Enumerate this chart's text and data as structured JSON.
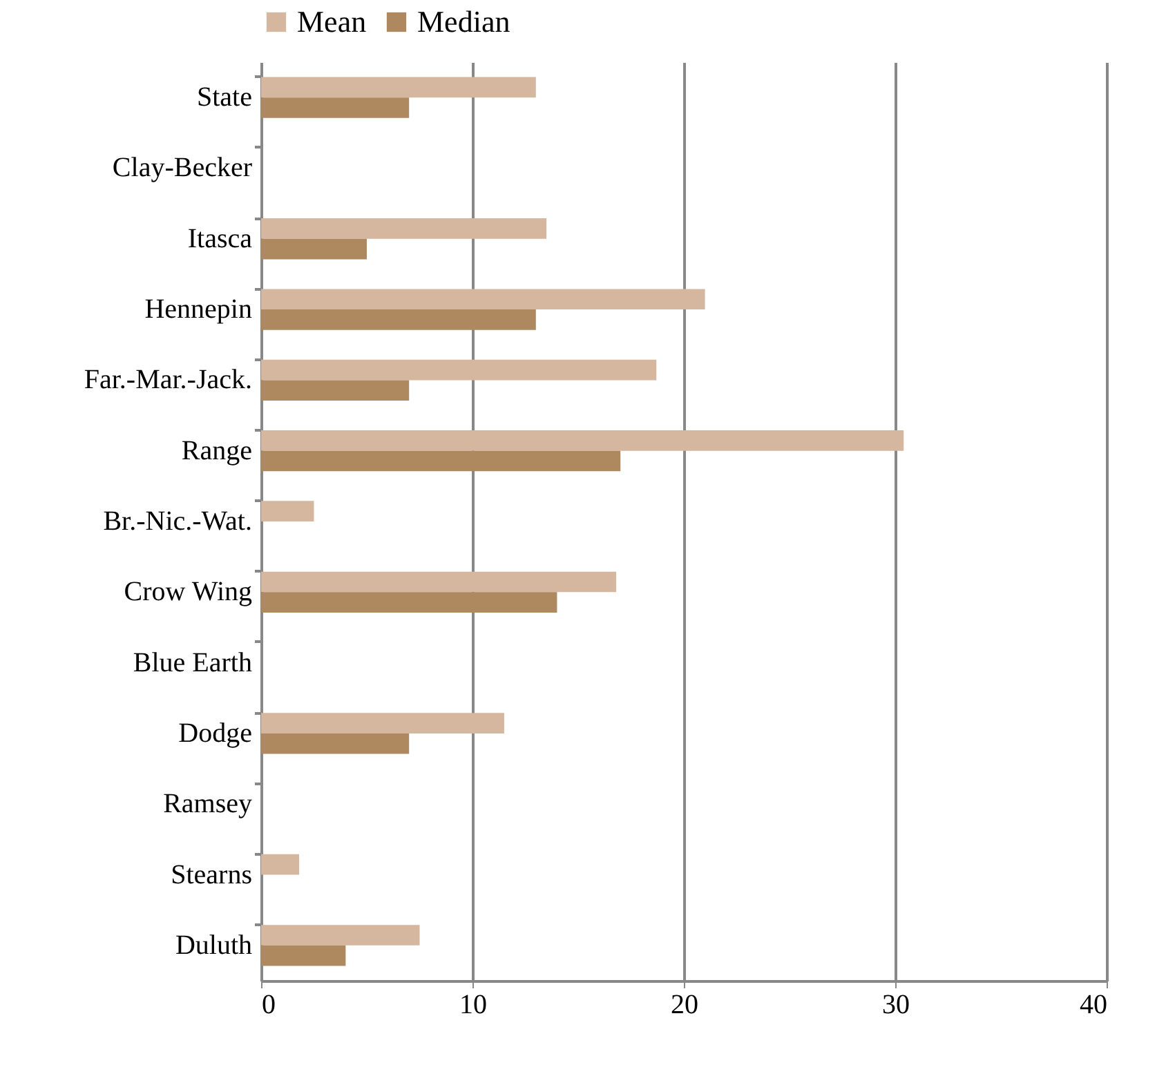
{
  "chart_data": {
    "type": "bar",
    "orientation": "horizontal",
    "categories": [
      "State",
      "Clay-Becker",
      "Itasca",
      "Hennepin",
      "Far.-Mar.-Jack.",
      "Range",
      "Br.-Nic.-Wat.",
      "Crow Wing",
      "Blue Earth",
      "Dodge",
      "Ramsey",
      "Stearns",
      "Duluth"
    ],
    "series": [
      {
        "name": "Mean",
        "color": "#d4b79e",
        "values": [
          13,
          null,
          13.5,
          21,
          18.7,
          30.4,
          2.5,
          16.8,
          null,
          11.5,
          null,
          1.8,
          7.5
        ]
      },
      {
        "name": "Median",
        "color": "#ae8960",
        "values": [
          7,
          null,
          5,
          13,
          7,
          17,
          null,
          14,
          null,
          7,
          null,
          null,
          4
        ]
      }
    ],
    "xlim": [
      0,
      40
    ],
    "xticks": [
      0,
      10,
      20,
      30,
      40
    ],
    "grid": "x",
    "legend": "top"
  }
}
